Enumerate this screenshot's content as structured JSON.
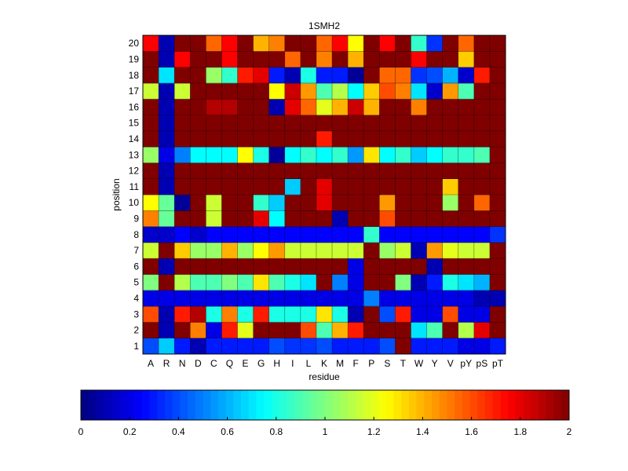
{
  "chart_data": [
    {
      "type": "heatmap",
      "title": "1SMH2",
      "xlabel": "residue",
      "ylabel": "position",
      "x_categories": [
        "A",
        "R",
        "N",
        "D",
        "C",
        "Q",
        "E",
        "G",
        "H",
        "I",
        "L",
        "K",
        "M",
        "F",
        "P",
        "S",
        "T",
        "W",
        "Y",
        "V",
        "pY",
        "pS",
        "pT"
      ],
      "y_categories": [
        "1",
        "2",
        "3",
        "4",
        "5",
        "6",
        "7",
        "8",
        "9",
        "10",
        "11",
        "12",
        "13",
        "14",
        "15",
        "16",
        "17",
        "18",
        "19",
        "20"
      ],
      "value_range": [
        0,
        2
      ],
      "colormap": "jet",
      "values": [
        [
          0.4,
          0.65,
          0.3,
          0.1,
          0.3,
          0.3,
          0.3,
          0.3,
          0.4,
          0.35,
          0.35,
          0.4,
          0.3,
          0.3,
          0.3,
          0.4,
          2.0,
          0.3,
          0.3,
          0.3,
          0.2,
          0.2,
          0.3
        ],
        [
          2.0,
          0.1,
          2.0,
          1.5,
          0.2,
          1.7,
          1.2,
          2.0,
          2.0,
          2.0,
          1.6,
          0.9,
          1.4,
          1.7,
          2.0,
          2.0,
          2.0,
          0.7,
          0.9,
          2.0,
          1.1,
          1.8,
          2.0
        ],
        [
          1.6,
          0.1,
          1.7,
          1.9,
          0.8,
          1.5,
          0.8,
          1.7,
          0.8,
          0.8,
          0.8,
          1.3,
          0.8,
          0.1,
          2.0,
          0.4,
          1.7,
          0.2,
          0.2,
          1.6,
          0.2,
          0.2,
          2.0
        ],
        [
          0.2,
          0.2,
          0.2,
          0.2,
          0.2,
          0.2,
          0.2,
          0.2,
          0.2,
          0.2,
          0.2,
          0.2,
          0.2,
          0.2,
          0.5,
          0.2,
          0.2,
          0.2,
          0.2,
          0.2,
          0.2,
          0.1,
          0.1
        ],
        [
          1.0,
          2.0,
          1.1,
          0.9,
          0.9,
          1.0,
          0.9,
          1.3,
          0.9,
          0.8,
          0.7,
          2.0,
          0.5,
          0.2,
          2.0,
          2.0,
          1.0,
          0.1,
          0.3,
          0.8,
          0.7,
          0.6,
          2.0
        ],
        [
          2.0,
          0.1,
          2.0,
          2.0,
          2.0,
          2.0,
          2.0,
          2.0,
          2.0,
          2.0,
          2.0,
          2.0,
          2.0,
          0.2,
          2.0,
          2.0,
          2.0,
          2.0,
          0.1,
          2.0,
          2.0,
          2.0,
          2.0
        ],
        [
          1.15,
          2.0,
          1.35,
          1.05,
          1.05,
          1.4,
          1.05,
          1.25,
          1.45,
          1.15,
          1.15,
          1.15,
          1.15,
          1.15,
          2.0,
          1.05,
          1.15,
          0.1,
          1.45,
          1.2,
          1.15,
          1.15,
          2.0
        ],
        [
          0.15,
          0.15,
          0.25,
          0.15,
          0.25,
          0.25,
          0.25,
          0.25,
          0.25,
          0.25,
          0.25,
          0.25,
          0.25,
          0.25,
          0.85,
          0.25,
          0.25,
          0.25,
          0.25,
          0.25,
          0.25,
          0.25,
          0.35
        ],
        [
          1.5,
          0.95,
          2.0,
          2.0,
          1.15,
          2.0,
          2.0,
          1.8,
          0.75,
          2.0,
          2.0,
          2.0,
          0.1,
          2.0,
          2.0,
          1.6,
          2.0,
          2.0,
          2.0,
          2.0,
          2.0,
          2.0,
          2.0
        ],
        [
          1.25,
          0.95,
          0.05,
          2.0,
          1.15,
          2.0,
          2.0,
          0.85,
          0.65,
          2.0,
          2.0,
          1.8,
          2.0,
          2.0,
          2.0,
          1.45,
          2.0,
          2.0,
          2.0,
          1.05,
          2.0,
          1.55,
          2.0
        ],
        [
          2.0,
          0.1,
          2.0,
          2.0,
          2.0,
          2.0,
          2.0,
          2.0,
          2.0,
          0.65,
          2.0,
          1.8,
          2.0,
          2.0,
          2.0,
          2.0,
          2.0,
          2.0,
          2.0,
          1.35,
          2.0,
          2.0,
          2.0
        ],
        [
          2.0,
          0.1,
          2.0,
          2.0,
          2.0,
          2.0,
          2.0,
          2.0,
          2.0,
          2.0,
          2.0,
          2.0,
          2.0,
          2.0,
          2.0,
          2.0,
          2.0,
          2.0,
          2.0,
          2.0,
          2.0,
          2.0,
          2.0
        ],
        [
          1.05,
          0.2,
          0.5,
          0.75,
          0.75,
          0.75,
          1.25,
          0.8,
          0.05,
          0.75,
          0.85,
          0.75,
          0.85,
          0.55,
          1.3,
          0.75,
          0.85,
          0.65,
          0.75,
          0.85,
          0.85,
          0.9,
          2.0
        ],
        [
          2.0,
          0.1,
          2.0,
          2.0,
          2.0,
          2.0,
          2.0,
          2.0,
          2.0,
          2.0,
          2.0,
          1.7,
          2.0,
          2.0,
          2.0,
          2.0,
          2.0,
          2.0,
          2.0,
          2.0,
          2.0,
          2.0,
          2.0
        ],
        [
          2.0,
          0.1,
          2.0,
          2.0,
          2.0,
          2.0,
          2.0,
          2.0,
          2.0,
          2.0,
          2.0,
          2.0,
          2.0,
          2.0,
          2.0,
          2.0,
          2.0,
          2.0,
          2.0,
          2.0,
          2.0,
          2.0,
          2.0
        ],
        [
          2.0,
          0.1,
          2.0,
          2.0,
          1.9,
          1.9,
          2.0,
          2.0,
          0.1,
          1.8,
          1.55,
          1.2,
          1.4,
          1.85,
          1.4,
          2.0,
          2.0,
          1.5,
          2.0,
          2.0,
          2.0,
          2.0,
          2.0
        ],
        [
          1.15,
          0.1,
          1.15,
          2.0,
          2.0,
          2.0,
          2.0,
          2.0,
          1.25,
          1.85,
          1.45,
          0.9,
          1.1,
          0.75,
          1.35,
          1.6,
          1.5,
          0.7,
          0.15,
          1.45,
          0.9,
          2.0,
          2.0
        ],
        [
          2.0,
          0.7,
          2.0,
          2.0,
          1.05,
          0.85,
          1.7,
          1.8,
          0.3,
          0.1,
          0.8,
          0.3,
          0.3,
          0.05,
          2.0,
          1.55,
          1.55,
          0.35,
          0.4,
          0.6,
          0.15,
          1.7,
          2.0
        ],
        [
          2.0,
          0.1,
          1.75,
          2.0,
          2.0,
          1.75,
          2.0,
          2.0,
          2.0,
          1.55,
          2.0,
          1.5,
          2.0,
          1.4,
          2.0,
          2.0,
          2.0,
          1.75,
          2.0,
          2.0,
          1.35,
          2.0,
          2.0
        ],
        [
          1.75,
          0.1,
          2.0,
          2.0,
          1.55,
          1.75,
          2.0,
          1.4,
          1.5,
          2.0,
          2.0,
          1.55,
          1.75,
          1.25,
          2.0,
          1.75,
          2.0,
          0.85,
          0.35,
          2.0,
          1.55,
          2.0,
          2.0
        ]
      ],
      "colorbar": {
        "ticks": [
          "0",
          "0.2",
          "0.4",
          "0.6",
          "0.8",
          "1",
          "1.2",
          "1.4",
          "1.6",
          "1.8",
          "2"
        ]
      }
    }
  ]
}
